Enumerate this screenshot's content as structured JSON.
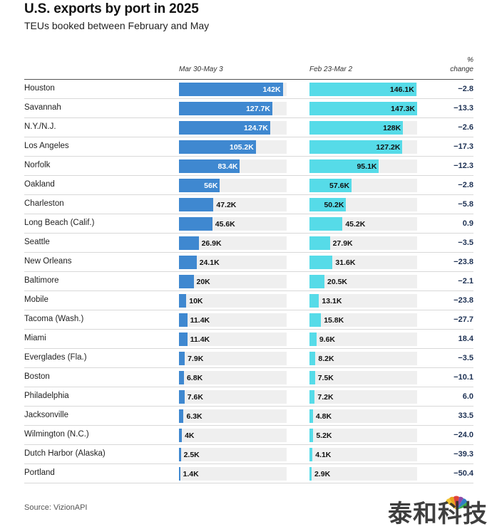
{
  "chart_data": {
    "type": "bar",
    "title": "U.S. exports by port in 2025",
    "subtitle": "TEUs booked between February and May",
    "column_headers": [
      "Mar 30-May 3",
      "Feb 23-Mar 2",
      "% change"
    ],
    "categories": [
      "Houston",
      "Savannah",
      "N.Y./N.J.",
      "Los Angeles",
      "Norfolk",
      "Oakland",
      "Charleston",
      "Long Beach (Calif.)",
      "Seattle",
      "New Orleans",
      "Baltimore",
      "Mobile",
      "Tacoma (Wash.)",
      "Miami",
      "Everglades (Fla.)",
      "Boston",
      "Philadelphia",
      "Jacksonville",
      "Wilmington (N.C.)",
      "Dutch Harbor (Alaska)",
      "Portland"
    ],
    "series": [
      {
        "name": "Mar 30-May 3",
        "color": "#3f88d0",
        "values": [
          142000,
          127700,
          124700,
          105200,
          83400,
          56000,
          47200,
          45600,
          26900,
          24100,
          20000,
          10000,
          11400,
          11400,
          7900,
          6800,
          7600,
          6300,
          4000,
          2500,
          1400
        ],
        "labels": [
          "142K",
          "127.7K",
          "124.7K",
          "105.2K",
          "83.4K",
          "56K",
          "47.2K",
          "45.6K",
          "26.9K",
          "24.1K",
          "20K",
          "10K",
          "11.4K",
          "11.4K",
          "7.9K",
          "6.8K",
          "7.6K",
          "6.3K",
          "4K",
          "2.5K",
          "1.4K"
        ]
      },
      {
        "name": "Feb 23-Mar 2",
        "color": "#56dbe8",
        "values": [
          146100,
          147300,
          128000,
          127200,
          95100,
          57600,
          50200,
          45200,
          27900,
          31600,
          20500,
          13100,
          15800,
          9600,
          8200,
          7500,
          7200,
          4800,
          5200,
          4100,
          2900
        ],
        "labels": [
          "146.1K",
          "147.3K",
          "128K",
          "127.2K",
          "95.1K",
          "57.6K",
          "50.2K",
          "45.2K",
          "27.9K",
          "31.6K",
          "20.5K",
          "13.1K",
          "15.8K",
          "9.6K",
          "8.2K",
          "7.5K",
          "7.2K",
          "4.8K",
          "5.2K",
          "4.1K",
          "2.9K"
        ]
      }
    ],
    "pct_change": [
      "−2.8",
      "−13.3",
      "−2.6",
      "−17.3",
      "−12.3",
      "−2.8",
      "−5.8",
      "0.9",
      "−3.5",
      "−23.8",
      "−2.1",
      "−23.8",
      "−27.7",
      "18.4",
      "−3.5",
      "−10.1",
      "6.0",
      "33.5",
      "−24.0",
      "−39.3",
      "−50.4"
    ],
    "max_value": 147300,
    "source": "Source: VizionAPI"
  },
  "header": {
    "pct_label_line1": "%",
    "pct_label_line2": "change"
  },
  "watermark": {
    "text": "泰和科技",
    "logo_text": "CNBC"
  }
}
